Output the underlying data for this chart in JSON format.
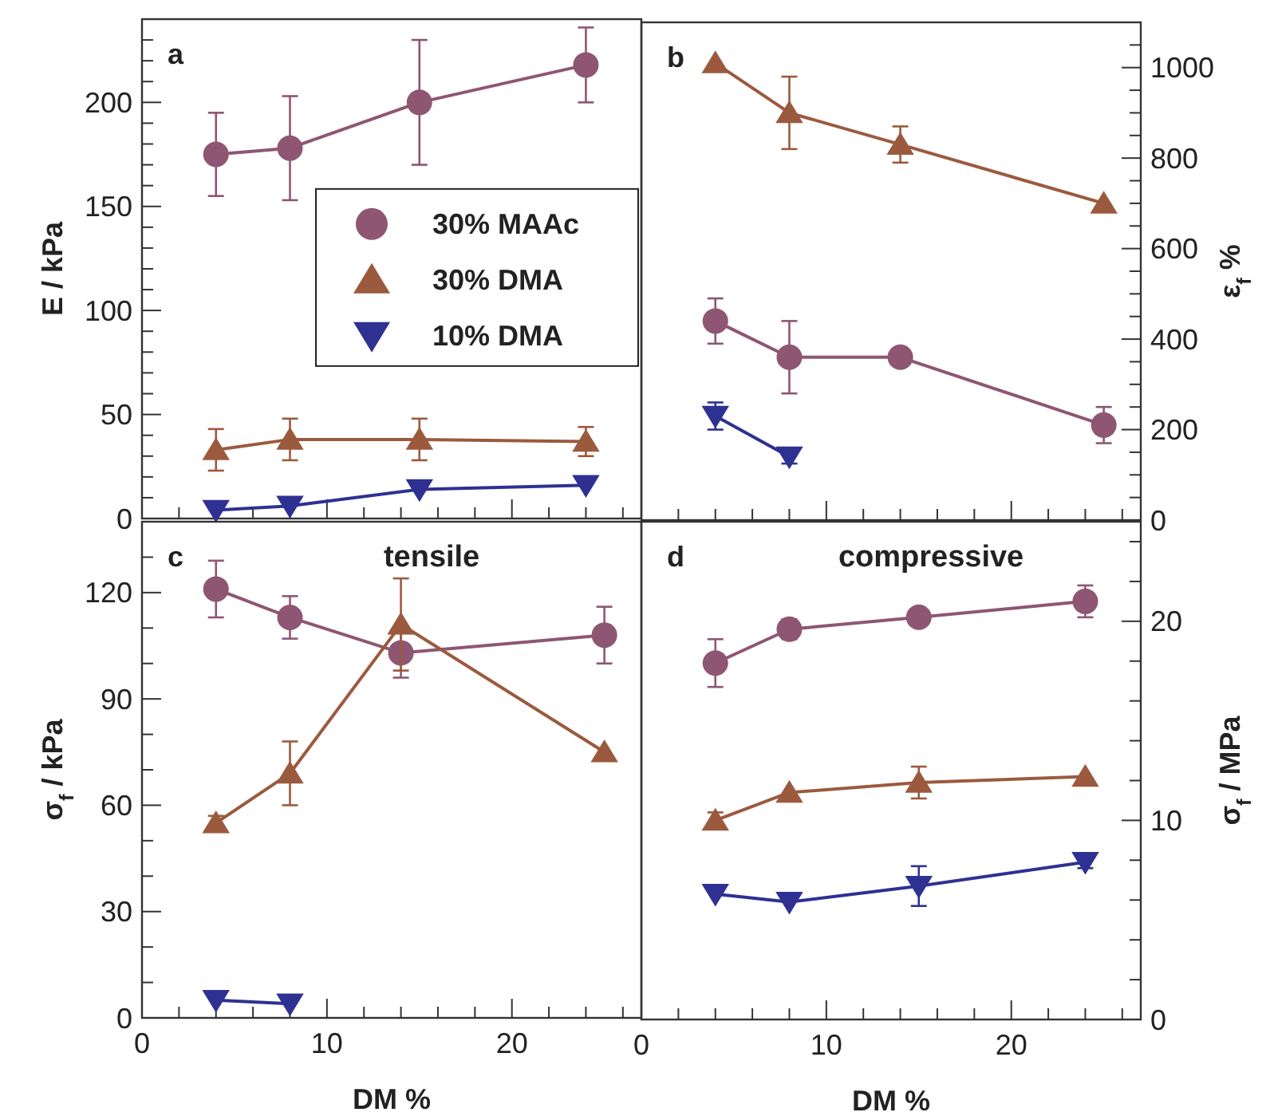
{
  "chart_data": [
    {
      "type": "line",
      "annotations": [
        "a"
      ],
      "xlim": [
        0,
        27
      ],
      "xticks": [
        0,
        {
          "value": 2,
          "label": null
        },
        {
          "value": 4,
          "label": null
        },
        {
          "value": 6,
          "label": null
        },
        {
          "value": 8,
          "label": null
        },
        10,
        {
          "value": 12,
          "label": null
        },
        {
          "value": 14,
          "label": null
        },
        {
          "value": 16,
          "label": null
        },
        {
          "value": 18,
          "label": null
        },
        20,
        {
          "value": 22,
          "label": null
        },
        {
          "value": 24,
          "label": null
        },
        {
          "value": 26,
          "label": null
        }
      ],
      "ylim": [
        0,
        240
      ],
      "yticks": [
        0,
        {
          "value": 10,
          "label": null
        },
        {
          "value": 20,
          "label": null
        },
        {
          "value": 30,
          "label": null
        },
        {
          "value": 40,
          "label": null
        },
        50,
        {
          "value": 60,
          "label": null
        },
        {
          "value": 70,
          "label": null
        },
        {
          "value": 80,
          "label": null
        },
        {
          "value": 90,
          "label": null
        },
        100,
        {
          "value": 110,
          "label": null
        },
        {
          "value": 120,
          "label": null
        },
        {
          "value": 130,
          "label": null
        },
        {
          "value": 140,
          "label": null
        },
        150,
        {
          "value": 160,
          "label": null
        },
        {
          "value": 170,
          "label": null
        },
        {
          "value": 180,
          "label": null
        },
        {
          "value": 190,
          "label": null
        },
        200,
        {
          "value": 210,
          "label": null
        },
        {
          "value": 220,
          "label": null
        },
        {
          "value": 230,
          "label": null
        }
      ],
      "ylabel": "E / kPa",
      "tick_labels": "y",
      "legend": "right",
      "grid": false,
      "series": [
        {
          "name": "30% MAAc",
          "color": "#8e5672",
          "marker": "circle",
          "x": [
            4,
            8,
            15,
            24
          ],
          "values": [
            175,
            178,
            200,
            218
          ],
          "errors": [
            20,
            25,
            30,
            18
          ]
        },
        {
          "name": "30% DMA",
          "color": "#9b5a3e",
          "marker": "triangle",
          "x": [
            4,
            8,
            15,
            24
          ],
          "values": [
            33,
            38,
            38,
            37
          ],
          "errors": [
            10,
            10,
            10,
            7
          ]
        },
        {
          "name": "10% DMA",
          "color": "#2e3192",
          "marker": "triangle-down",
          "x": [
            4,
            8,
            15,
            24
          ],
          "values": [
            4,
            6,
            14,
            16
          ]
        }
      ]
    },
    {
      "type": "line",
      "annotations": [
        "b"
      ],
      "xlim": [
        0,
        27
      ],
      "xticks": [
        0,
        {
          "value": 2,
          "label": null
        },
        {
          "value": 4,
          "label": null
        },
        {
          "value": 6,
          "label": null
        },
        {
          "value": 8,
          "label": null
        },
        10,
        {
          "value": 12,
          "label": null
        },
        {
          "value": 14,
          "label": null
        },
        {
          "value": 16,
          "label": null
        },
        {
          "value": 18,
          "label": null
        },
        20,
        {
          "value": 22,
          "label": null
        },
        {
          "value": 24,
          "label": null
        },
        {
          "value": 26,
          "label": null
        }
      ],
      "y2lim": [
        0,
        1100
      ],
      "y2ticks": [
        0,
        {
          "value": 50,
          "label": null
        },
        {
          "value": 100,
          "label": null
        },
        {
          "value": 150,
          "label": null
        },
        200,
        {
          "value": 250,
          "label": null
        },
        {
          "value": 300,
          "label": null
        },
        {
          "value": 350,
          "label": null
        },
        400,
        {
          "value": 450,
          "label": null
        },
        {
          "value": 500,
          "label": null
        },
        {
          "value": 550,
          "label": null
        },
        600,
        {
          "value": 650,
          "label": null
        },
        {
          "value": 700,
          "label": null
        },
        {
          "value": 750,
          "label": null
        },
        800,
        {
          "value": 850,
          "label": null
        },
        {
          "value": 900,
          "label": null
        },
        {
          "value": 950,
          "label": null
        },
        1000,
        {
          "value": 1050,
          "label": null
        }
      ],
      "y2label": "ε$_{f}$ %",
      "tick_labels": "y",
      "legend": false,
      "grid": false,
      "series": [
        {
          "color": "#8e5672",
          "marker": "circle",
          "axis": "y2",
          "x": [
            4,
            8,
            14,
            25
          ],
          "values": [
            440,
            360,
            360,
            210
          ],
          "errors": [
            50,
            80,
            null,
            40
          ]
        },
        {
          "color": "#9b5a3e",
          "marker": "triangle",
          "axis": "y2",
          "x": [
            4,
            8,
            14,
            25
          ],
          "values": [
            1010,
            900,
            830,
            700
          ],
          "errors": [
            null,
            80,
            40,
            null
          ]
        },
        {
          "color": "#2e3192",
          "marker": "triangle-down",
          "axis": "y2",
          "x": [
            4,
            8
          ],
          "values": [
            230,
            140
          ],
          "errors": [
            30,
            15
          ]
        }
      ]
    },
    {
      "type": "line",
      "annotations": [
        "c",
        "tensile"
      ],
      "xlim": [
        0,
        27
      ],
      "xticks": [
        0,
        {
          "value": 2,
          "label": null
        },
        {
          "value": 4,
          "label": null
        },
        {
          "value": 6,
          "label": null
        },
        {
          "value": 8,
          "label": null
        },
        10,
        {
          "value": 12,
          "label": null
        },
        {
          "value": 14,
          "label": null
        },
        {
          "value": 16,
          "label": null
        },
        {
          "value": 18,
          "label": null
        },
        20,
        {
          "value": 22,
          "label": null
        },
        {
          "value": 24,
          "label": null
        },
        {
          "value": 26,
          "label": null
        }
      ],
      "ylim": [
        0,
        140
      ],
      "yticks": [
        0,
        {
          "value": 10,
          "label": null
        },
        {
          "value": 20,
          "label": null
        },
        30,
        {
          "value": 40,
          "label": null
        },
        {
          "value": 50,
          "label": null
        },
        60,
        {
          "value": 70,
          "label": null
        },
        {
          "value": 80,
          "label": null
        },
        90,
        {
          "value": 100,
          "label": null
        },
        {
          "value": 110,
          "label": null
        },
        120,
        {
          "value": 130,
          "label": null
        }
      ],
      "xlabel": "DM %",
      "ylabel": "σ$_{f}$ / kPa",
      "legend": false,
      "grid": false,
      "series": [
        {
          "color": "#8e5672",
          "marker": "circle",
          "x": [
            4,
            8,
            14,
            25
          ],
          "values": [
            121,
            113,
            103,
            108
          ],
          "errors": [
            8,
            6,
            7,
            8
          ]
        },
        {
          "color": "#9b5a3e",
          "marker": "triangle",
          "x": [
            4,
            8,
            14,
            25
          ],
          "values": [
            55,
            69,
            111,
            75
          ],
          "errors": [
            2,
            9,
            13,
            null
          ]
        },
        {
          "color": "#2e3192",
          "marker": "triangle-down",
          "x": [
            4,
            8
          ],
          "values": [
            5,
            4
          ]
        }
      ]
    },
    {
      "type": "line",
      "annotations": [
        "d",
        "compressive"
      ],
      "xlim": [
        0,
        27
      ],
      "xticks": [
        0,
        {
          "value": 2,
          "label": null
        },
        {
          "value": 4,
          "label": null
        },
        {
          "value": 6,
          "label": null
        },
        {
          "value": 8,
          "label": null
        },
        10,
        {
          "value": 12,
          "label": null
        },
        {
          "value": 14,
          "label": null
        },
        {
          "value": 16,
          "label": null
        },
        {
          "value": 18,
          "label": null
        },
        20,
        {
          "value": 22,
          "label": null
        },
        {
          "value": 24,
          "label": null
        },
        {
          "value": 26,
          "label": null
        }
      ],
      "y2lim": [
        0,
        25
      ],
      "y2ticks": [
        0,
        {
          "value": 2,
          "label": null
        },
        {
          "value": 4,
          "label": null
        },
        {
          "value": 6,
          "label": null
        },
        {
          "value": 8,
          "label": null
        },
        10,
        {
          "value": 12,
          "label": null
        },
        {
          "value": 14,
          "label": null
        },
        {
          "value": 16,
          "label": null
        },
        {
          "value": 18,
          "label": null
        },
        20,
        {
          "value": 22,
          "label": null
        },
        {
          "value": 24,
          "label": null
        }
      ],
      "xlabel": "DM %",
      "y2label": "σ$_{f}$ / MPa",
      "tick_labels": [
        "x",
        "y2"
      ],
      "legend": false,
      "grid": false,
      "series": [
        {
          "color": "#8e5672",
          "marker": "circle",
          "axis": "y2",
          "x": [
            4,
            8,
            15,
            24
          ],
          "values": [
            17.9,
            19.6,
            20.2,
            21.0
          ],
          "errors": [
            1.2,
            0.5,
            null,
            0.8
          ]
        },
        {
          "color": "#9b5a3e",
          "marker": "triangle",
          "axis": "y2",
          "x": [
            4,
            8,
            15,
            24
          ],
          "values": [
            10,
            11.4,
            11.9,
            12.2
          ],
          "errors": [
            0.4,
            null,
            0.8,
            null
          ]
        },
        {
          "color": "#2e3192",
          "marker": "triangle-down",
          "axis": "y2",
          "x": [
            4,
            8,
            15,
            24
          ],
          "values": [
            6.3,
            5.9,
            6.7,
            7.9
          ],
          "errors": [
            null,
            null,
            1,
            0.3
          ]
        }
      ]
    }
  ]
}
